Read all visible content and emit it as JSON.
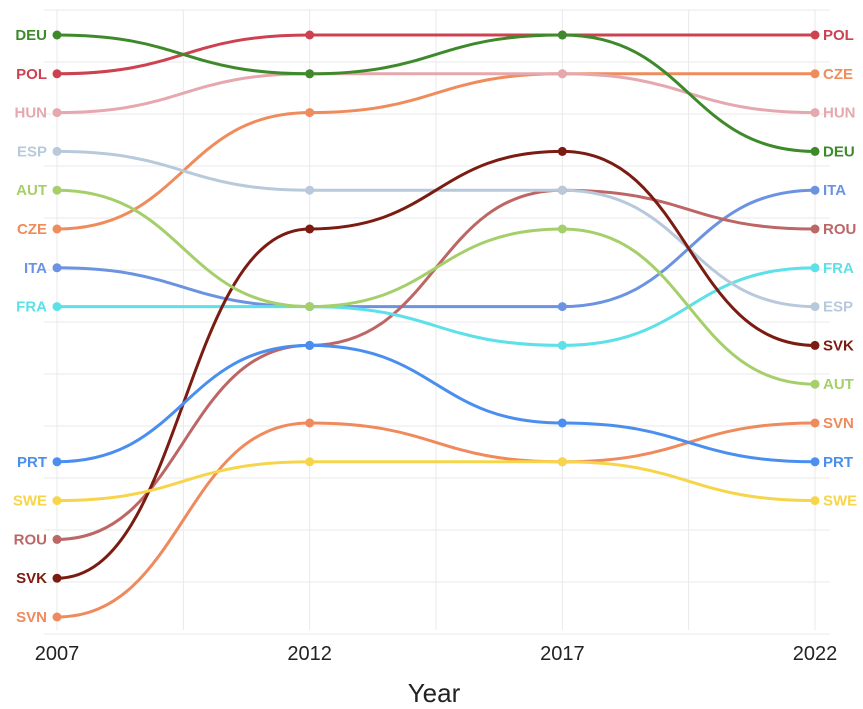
{
  "chart_data": {
    "type": "line",
    "xlabel": "Year",
    "ylabel": "",
    "x": [
      "2007",
      "2012",
      "2017",
      "2022"
    ],
    "y_scale": "rank",
    "y_reversed": true,
    "ylim": [
      1,
      16
    ],
    "grid": true,
    "legend": "direct labels at both line ends",
    "series": [
      {
        "name": "POL",
        "color": "#cc4250",
        "values": [
          2,
          1,
          1,
          1
        ]
      },
      {
        "name": "CZE",
        "color": "#ef8c5c",
        "values": [
          6,
          3,
          2,
          2
        ]
      },
      {
        "name": "HUN",
        "color": "#e5a8ae",
        "values": [
          3,
          2,
          2,
          3
        ]
      },
      {
        "name": "DEU",
        "color": "#3e8a2b",
        "values": [
          1,
          2,
          1,
          4
        ]
      },
      {
        "name": "ITA",
        "color": "#6b93e1",
        "values": [
          7,
          8,
          8,
          5
        ]
      },
      {
        "name": "ROU",
        "color": "#bd6666",
        "values": [
          14,
          9,
          5,
          6
        ]
      },
      {
        "name": "FRA",
        "color": "#5de0e8",
        "values": [
          8,
          8,
          9,
          7
        ]
      },
      {
        "name": "ESP",
        "color": "#b8c9dc",
        "values": [
          4,
          5,
          5,
          8
        ]
      },
      {
        "name": "SVK",
        "color": "#7a1c12",
        "values": [
          15,
          6,
          4,
          9
        ]
      },
      {
        "name": "AUT",
        "color": "#a5cf6a",
        "values": [
          5,
          8,
          6,
          10
        ]
      },
      {
        "name": "SVN",
        "color": "#ef8a5c",
        "values": [
          16,
          11,
          12,
          11
        ]
      },
      {
        "name": "PRT",
        "color": "#4a8ef0",
        "values": [
          12,
          9,
          11,
          12
        ]
      },
      {
        "name": "SWE",
        "color": "#f7d54a",
        "values": [
          13,
          12,
          12,
          13
        ]
      }
    ]
  }
}
